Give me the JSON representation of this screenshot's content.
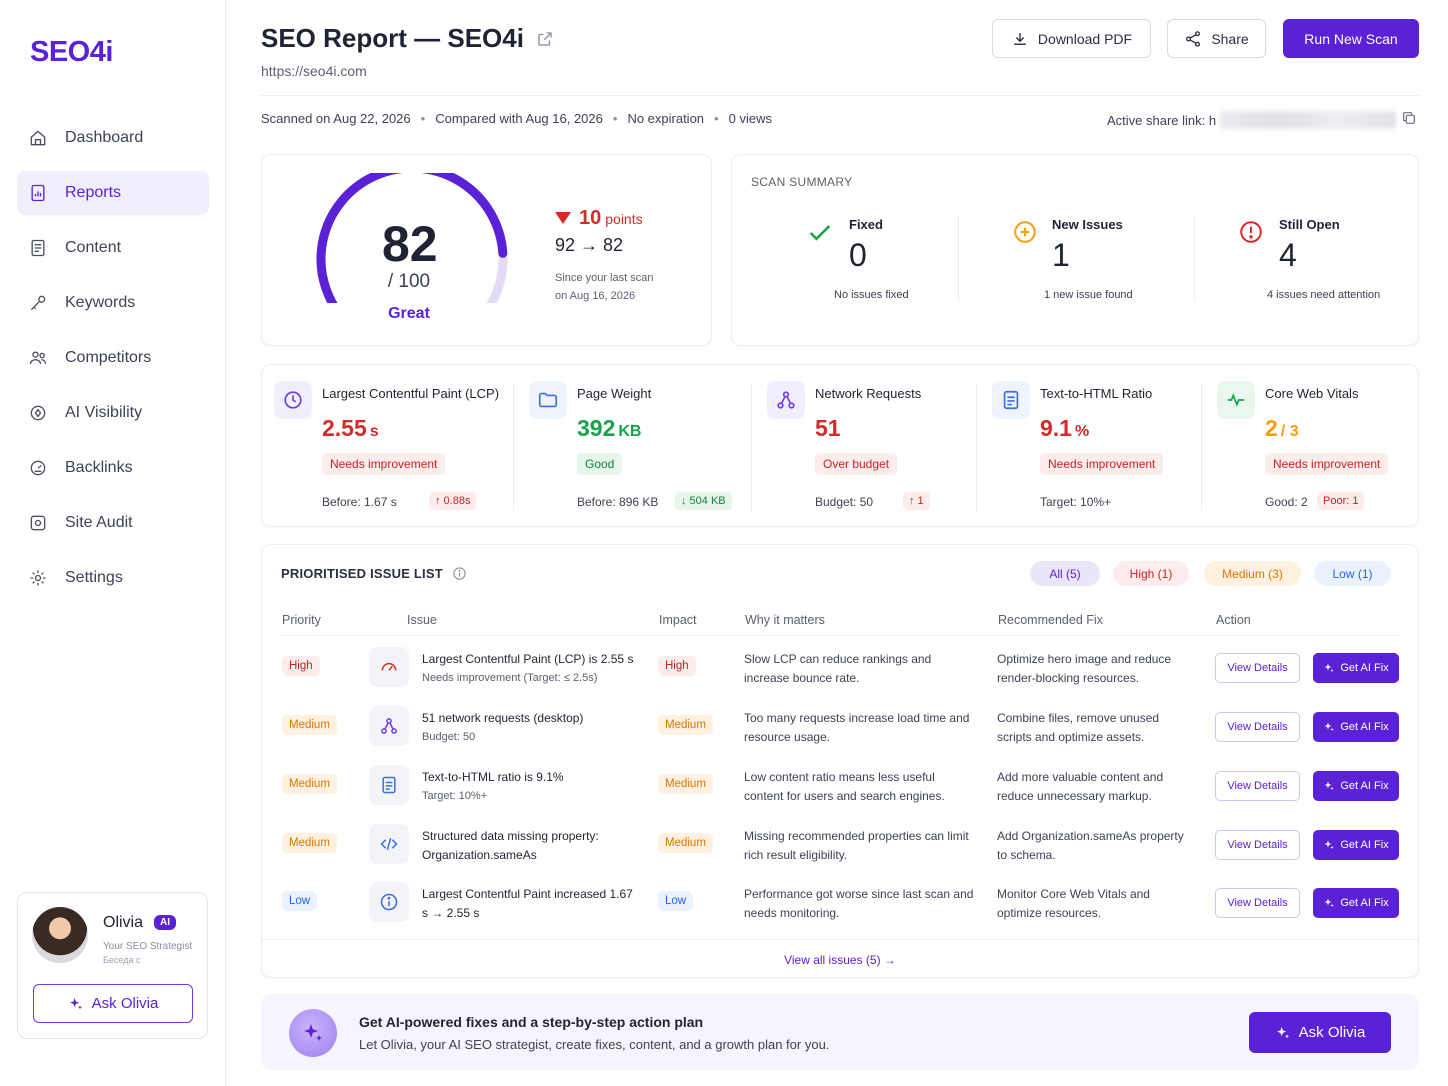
{
  "brand": {
    "logo": "SEO4i",
    "accent": "#5b21d6"
  },
  "sidebar": {
    "items": [
      {
        "label": "Dashboard",
        "icon": "home-icon",
        "active": false
      },
      {
        "label": "Reports",
        "icon": "report-icon",
        "active": true
      },
      {
        "label": "Content",
        "icon": "document-icon",
        "active": false
      },
      {
        "label": "Keywords",
        "icon": "key-icon",
        "active": false
      },
      {
        "label": "Competitors",
        "icon": "users-icon",
        "active": false
      },
      {
        "label": "AI Visibility",
        "icon": "target-icon",
        "active": false
      },
      {
        "label": "Backlinks",
        "icon": "gauge-icon",
        "active": false
      },
      {
        "label": "Site Audit",
        "icon": "audit-icon",
        "active": false
      },
      {
        "label": "Settings",
        "icon": "gear-icon",
        "active": false
      }
    ],
    "assistant": {
      "name": "Olivia",
      "badge": "AI",
      "role": "Your SEO Strategist",
      "status": "Беседа с",
      "button": "Ask Olivia"
    }
  },
  "header": {
    "title": "SEO Report — SEO4i",
    "url": "https://seo4i.com",
    "buttons": {
      "download": "Download PDF",
      "share": "Share",
      "run": "Run New Scan"
    },
    "meta": {
      "scanned": "Scanned on Aug 22, 2026",
      "compared": "Compared with Aug 16, 2026",
      "expiration": "No expiration",
      "views": "0 views",
      "share_label": "Active share link: h"
    }
  },
  "score": {
    "value": 82,
    "max_label": "/ 100",
    "max": 100,
    "grade": "Great",
    "delta_value": "10",
    "delta_unit": "points",
    "change": "92 → 82",
    "since_line1": "Since your last scan",
    "since_line2": "on Aug 16, 2026"
  },
  "summary": {
    "title": "SCAN SUMMARY",
    "fixed": {
      "label": "Fixed",
      "value": "0",
      "sub": "No issues fixed"
    },
    "new": {
      "label": "New Issues",
      "value": "1",
      "sub": "1 new issue found"
    },
    "open": {
      "label": "Still Open",
      "value": "4",
      "sub": "4 issues need attention"
    }
  },
  "metrics": [
    {
      "title": "Largest Contentful Paint (LCP)",
      "value": "2.55",
      "unit": "s",
      "status": "Needs improvement",
      "foot": "Before: 1.67 s",
      "chip": "↑ 0.88s"
    },
    {
      "title": "Page Weight",
      "value": "392",
      "unit": "KB",
      "status": "Good",
      "foot": "Before: 896 KB",
      "chip": "↓ 504 KB"
    },
    {
      "title": "Network Requests",
      "value": "51",
      "unit": "",
      "status": "Over budget",
      "foot": "Budget: 50",
      "chip": "↑ 1"
    },
    {
      "title": "Text-to-HTML Ratio",
      "value": "9.1",
      "unit": "%",
      "status": "Needs improvement",
      "foot": "Target: 10%+",
      "chip": ""
    },
    {
      "title": "Core Web Vitals",
      "value": "2",
      "unit": "/ 3",
      "status": "Needs improvement",
      "foot": "Good: 2",
      "chip": "Poor: 1"
    }
  ],
  "issues": {
    "title": "PRIORITISED ISSUE LIST",
    "filters": [
      "All (5)",
      "High (1)",
      "Medium (3)",
      "Low (1)"
    ],
    "columns": [
      "Priority",
      "Issue",
      "Impact",
      "Why it matters",
      "Recommended Fix",
      "Action"
    ],
    "rows": [
      {
        "priority": "High",
        "icon": "speedometer-icon",
        "title": "Largest Contentful Paint (LCP) is 2.55 s",
        "sub": "Needs improvement (Target: ≤ 2.5s)",
        "impact": "High",
        "why": "Slow LCP can reduce rankings and increase bounce rate.",
        "fix": "Optimize hero image and reduce render-blocking resources."
      },
      {
        "priority": "Medium",
        "icon": "network-icon",
        "title": "51 network requests (desktop)",
        "sub": "Budget: 50",
        "impact": "Medium",
        "why": "Too many requests increase load time and resource usage.",
        "fix": "Combine files, remove unused scripts and optimize assets."
      },
      {
        "priority": "Medium",
        "icon": "document-icon",
        "title": "Text-to-HTML ratio is 9.1%",
        "sub": "Target: 10%+",
        "impact": "Medium",
        "why": "Low content ratio means less useful content for users and search engines.",
        "fix": "Add more valuable content and reduce unnecessary markup."
      },
      {
        "priority": "Medium",
        "icon": "code-icon",
        "title": "Structured data missing property: Organization.sameAs",
        "sub": "",
        "impact": "Medium",
        "why": "Missing recommended properties can limit rich result eligibility.",
        "fix": "Add Organization.sameAs property to schema."
      },
      {
        "priority": "Low",
        "icon": "info-icon",
        "title": "Largest Contentful Paint increased 1.67 s → 2.55 s",
        "sub": "",
        "impact": "Low",
        "why": "Performance got worse since last scan and needs monitoring.",
        "fix": "Monitor Core Web Vitals and optimize resources."
      }
    ],
    "view_details": "View Details",
    "ai_fix": "Get AI Fix",
    "view_all": "View all issues (5)  →"
  },
  "banner": {
    "title": "Get AI-powered fixes and a step-by-step action plan",
    "subtitle": "Let Olivia, your AI SEO strategist, create fixes, content, and a growth plan for you.",
    "button": "Ask Olivia"
  }
}
